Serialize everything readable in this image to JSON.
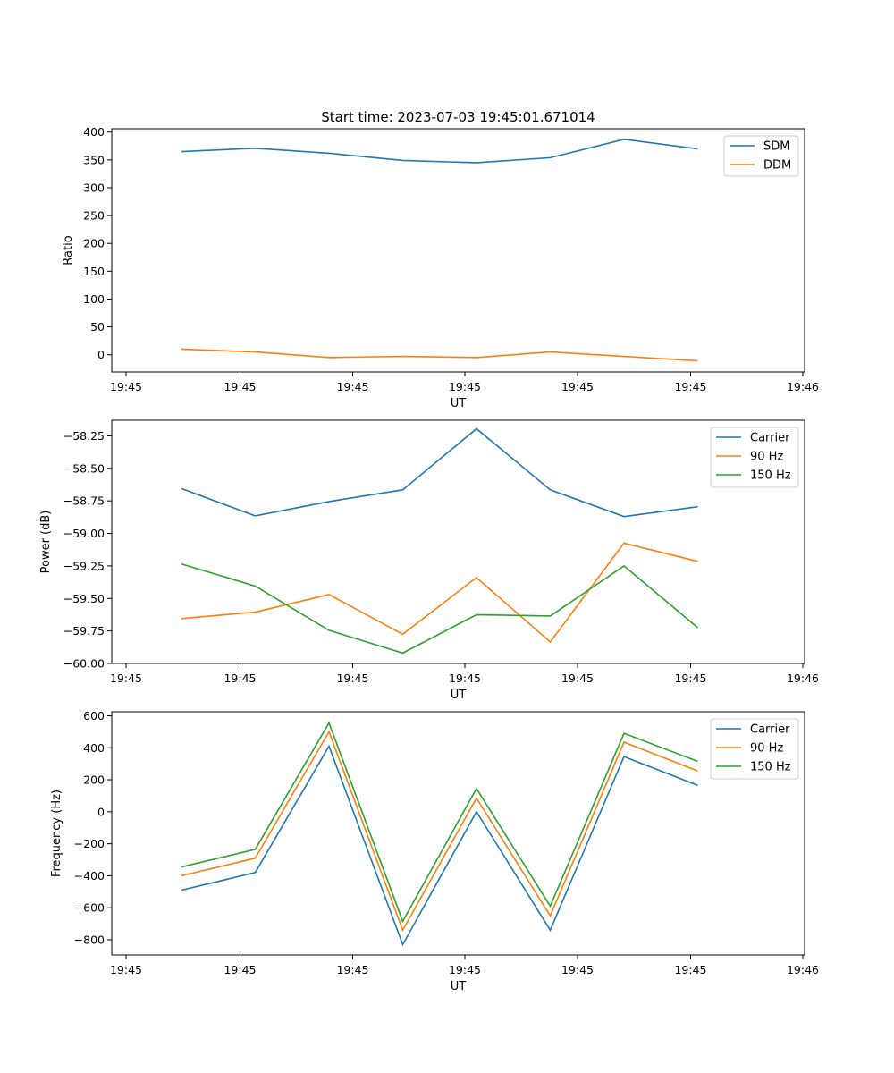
{
  "chart_data": [
    {
      "type": "line",
      "title": "Start time: 2023-07-03 19:45:01.671014",
      "xlabel": "UT",
      "ylabel": "Ratio",
      "xtick_labels": [
        "19:45",
        "19:45",
        "19:45",
        "19:45",
        "19:45",
        "19:45",
        "19:46"
      ],
      "yticks": [
        "0",
        "50",
        "100",
        "150",
        "200",
        "250",
        "300",
        "350",
        "400"
      ],
      "ylim": [
        -31,
        406
      ],
      "series": [
        {
          "name": "SDM",
          "color": "#1f77b4",
          "values": [
            365,
            371,
            362,
            349,
            345,
            354,
            387,
            370
          ]
        },
        {
          "name": "DDM",
          "color": "#ff7f0e",
          "values": [
            10,
            5,
            -5,
            -3,
            -5,
            5,
            -3,
            -11
          ]
        }
      ]
    },
    {
      "type": "line",
      "title": "",
      "xlabel": "UT",
      "ylabel": "Power (dB)",
      "xtick_labels": [
        "19:45",
        "19:45",
        "19:45",
        "19:45",
        "19:45",
        "19:45",
        "19:46"
      ],
      "yticks": [
        "−60.00",
        "−59.75",
        "−59.50",
        "−59.25",
        "−59.00",
        "−58.75",
        "−58.50",
        "−58.25"
      ],
      "ylim": [
        -60.0,
        -58.13
      ],
      "series": [
        {
          "name": "Carrier",
          "color": "#1f77b4",
          "values": [
            -58.655,
            -58.865,
            -58.755,
            -58.665,
            -58.195,
            -58.665,
            -58.87,
            -58.795
          ]
        },
        {
          "name": "90 Hz",
          "color": "#ff7f0e",
          "values": [
            -59.655,
            -59.605,
            -59.47,
            -59.775,
            -59.34,
            -59.835,
            -59.075,
            -59.215
          ]
        },
        {
          "name": "150 Hz",
          "color": "#2ca02c",
          "values": [
            -59.235,
            -59.405,
            -59.745,
            -59.92,
            -59.625,
            -59.635,
            -59.25,
            -59.725
          ]
        }
      ]
    },
    {
      "type": "line",
      "title": "",
      "xlabel": "UT",
      "ylabel": "Frequency (Hz)",
      "xtick_labels": [
        "19:45",
        "19:45",
        "19:45",
        "19:45",
        "19:45",
        "19:45",
        "19:46"
      ],
      "yticks": [
        "−800",
        "−600",
        "−400",
        "−200",
        "0",
        "200",
        "400",
        "600"
      ],
      "ylim": [
        -895,
        625
      ],
      "series": [
        {
          "name": "Carrier",
          "color": "#1f77b4",
          "values": [
            -490,
            -380,
            410,
            -830,
            0,
            -740,
            345,
            165
          ]
        },
        {
          "name": "90 Hz",
          "color": "#ff7f0e",
          "values": [
            -400,
            -290,
            500,
            -740,
            85,
            -650,
            435,
            255
          ]
        },
        {
          "name": "150 Hz",
          "color": "#2ca02c",
          "values": [
            -345,
            -235,
            555,
            -685,
            145,
            -590,
            490,
            315
          ]
        }
      ]
    }
  ]
}
